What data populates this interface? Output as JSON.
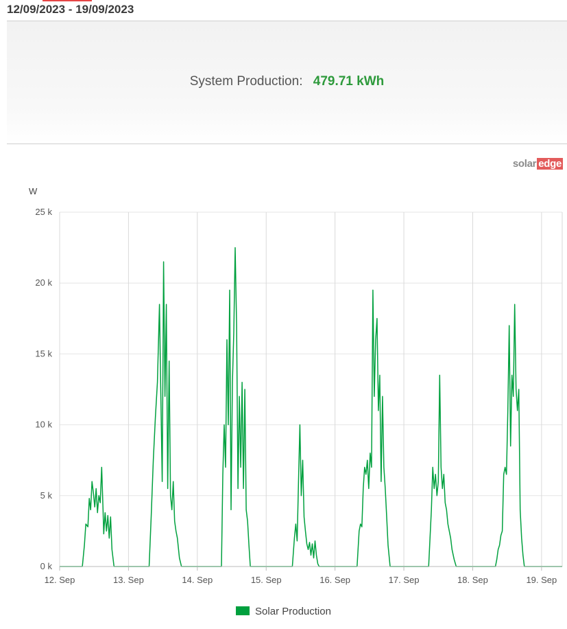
{
  "header": {
    "date_range": "12/09/2023 - 19/09/2023"
  },
  "summary": {
    "label": "System Production:",
    "value": "479.71 kWh"
  },
  "logo": {
    "part1": "solar",
    "part2": "edge"
  },
  "chart_data": {
    "type": "area",
    "unit_label": "W",
    "ylim": [
      0,
      25000
    ],
    "y_ticks": [
      0,
      5000,
      10000,
      15000,
      20000,
      25000
    ],
    "y_tick_labels": [
      "0 k",
      "5 k",
      "10 k",
      "15 k",
      "20 k",
      "25 k"
    ],
    "xlim": [
      0,
      7.3
    ],
    "x_ticks": [
      0,
      1,
      2,
      3,
      4,
      5,
      6,
      7
    ],
    "x_tick_labels": [
      "12. Sep",
      "13. Sep",
      "14. Sep",
      "15. Sep",
      "16. Sep",
      "17. Sep",
      "18. Sep",
      "19. Sep"
    ],
    "grid": true,
    "legend_position": "bottom-center",
    "series": [
      {
        "name": "Solar Production",
        "color": "#00a03e",
        "points": [
          [
            0,
            0
          ],
          [
            0.33,
            0
          ],
          [
            0.36,
            1500
          ],
          [
            0.38,
            3000
          ],
          [
            0.41,
            2800
          ],
          [
            0.43,
            4800
          ],
          [
            0.45,
            4000
          ],
          [
            0.47,
            6000
          ],
          [
            0.49,
            5200
          ],
          [
            0.51,
            4200
          ],
          [
            0.53,
            5500
          ],
          [
            0.55,
            3800
          ],
          [
            0.57,
            5000
          ],
          [
            0.59,
            4500
          ],
          [
            0.61,
            7000
          ],
          [
            0.63,
            4000
          ],
          [
            0.64,
            2300
          ],
          [
            0.66,
            3800
          ],
          [
            0.68,
            2500
          ],
          [
            0.7,
            3600
          ],
          [
            0.72,
            2000
          ],
          [
            0.74,
            3500
          ],
          [
            0.76,
            1200
          ],
          [
            0.79,
            0
          ],
          [
            1.3,
            0
          ],
          [
            1.33,
            3500
          ],
          [
            1.36,
            7500
          ],
          [
            1.39,
            10500
          ],
          [
            1.42,
            13000
          ],
          [
            1.45,
            18500
          ],
          [
            1.47,
            12000
          ],
          [
            1.49,
            6000
          ],
          [
            1.51,
            21500
          ],
          [
            1.53,
            12000
          ],
          [
            1.55,
            18500
          ],
          [
            1.57,
            5500
          ],
          [
            1.59,
            14500
          ],
          [
            1.61,
            5000
          ],
          [
            1.63,
            4000
          ],
          [
            1.65,
            6000
          ],
          [
            1.67,
            3200
          ],
          [
            1.69,
            2500
          ],
          [
            1.71,
            2000
          ],
          [
            1.74,
            600
          ],
          [
            1.77,
            0
          ],
          [
            2.35,
            0
          ],
          [
            2.37,
            6500
          ],
          [
            2.39,
            10000
          ],
          [
            2.41,
            7000
          ],
          [
            2.43,
            16000
          ],
          [
            2.45,
            10000
          ],
          [
            2.47,
            19500
          ],
          [
            2.49,
            4000
          ],
          [
            2.51,
            13000
          ],
          [
            2.53,
            16500
          ],
          [
            2.55,
            22500
          ],
          [
            2.57,
            17000
          ],
          [
            2.59,
            5500
          ],
          [
            2.61,
            12000
          ],
          [
            2.63,
            7000
          ],
          [
            2.65,
            13000
          ],
          [
            2.67,
            5500
          ],
          [
            2.69,
            12500
          ],
          [
            2.71,
            4000
          ],
          [
            2.73,
            3200
          ],
          [
            2.75,
            1500
          ],
          [
            2.77,
            0
          ],
          [
            3.38,
            0
          ],
          [
            3.41,
            2000
          ],
          [
            3.43,
            3000
          ],
          [
            3.45,
            1800
          ],
          [
            3.47,
            6000
          ],
          [
            3.49,
            10000
          ],
          [
            3.51,
            5000
          ],
          [
            3.53,
            7500
          ],
          [
            3.55,
            3500
          ],
          [
            3.57,
            2500
          ],
          [
            3.59,
            1600
          ],
          [
            3.61,
            1200
          ],
          [
            3.63,
            1700
          ],
          [
            3.65,
            800
          ],
          [
            3.67,
            1600
          ],
          [
            3.69,
            600
          ],
          [
            3.71,
            1800
          ],
          [
            3.73,
            800
          ],
          [
            3.75,
            200
          ],
          [
            3.77,
            0
          ],
          [
            4.32,
            0
          ],
          [
            4.35,
            2500
          ],
          [
            4.37,
            3000
          ],
          [
            4.39,
            2800
          ],
          [
            4.41,
            5500
          ],
          [
            4.43,
            7000
          ],
          [
            4.45,
            6500
          ],
          [
            4.47,
            7500
          ],
          [
            4.49,
            5500
          ],
          [
            4.51,
            8000
          ],
          [
            4.53,
            7000
          ],
          [
            4.55,
            19500
          ],
          [
            4.57,
            12000
          ],
          [
            4.59,
            16000
          ],
          [
            4.61,
            17500
          ],
          [
            4.63,
            11000
          ],
          [
            4.65,
            13500
          ],
          [
            4.67,
            6000
          ],
          [
            4.69,
            12000
          ],
          [
            4.71,
            7000
          ],
          [
            4.73,
            5500
          ],
          [
            4.75,
            3500
          ],
          [
            4.77,
            1500
          ],
          [
            4.8,
            0
          ],
          [
            5.36,
            0
          ],
          [
            5.38,
            2000
          ],
          [
            5.4,
            4000
          ],
          [
            5.42,
            7000
          ],
          [
            5.44,
            5500
          ],
          [
            5.46,
            6500
          ],
          [
            5.48,
            5000
          ],
          [
            5.5,
            6000
          ],
          [
            5.52,
            13500
          ],
          [
            5.54,
            7000
          ],
          [
            5.56,
            5500
          ],
          [
            5.58,
            6500
          ],
          [
            5.6,
            4500
          ],
          [
            5.62,
            4000
          ],
          [
            5.64,
            3000
          ],
          [
            5.66,
            2500
          ],
          [
            5.68,
            2000
          ],
          [
            5.7,
            1200
          ],
          [
            5.73,
            500
          ],
          [
            5.76,
            0
          ],
          [
            6.33,
            0
          ],
          [
            6.35,
            500
          ],
          [
            6.37,
            1200
          ],
          [
            6.39,
            1500
          ],
          [
            6.41,
            2200
          ],
          [
            6.43,
            2500
          ],
          [
            6.45,
            6500
          ],
          [
            6.47,
            7000
          ],
          [
            6.49,
            6500
          ],
          [
            6.51,
            11000
          ],
          [
            6.53,
            17000
          ],
          [
            6.55,
            8500
          ],
          [
            6.57,
            13500
          ],
          [
            6.59,
            12000
          ],
          [
            6.61,
            18500
          ],
          [
            6.63,
            12500
          ],
          [
            6.65,
            11000
          ],
          [
            6.67,
            12500
          ],
          [
            6.69,
            4000
          ],
          [
            6.71,
            2000
          ],
          [
            6.73,
            800
          ],
          [
            6.75,
            0
          ],
          [
            7.3,
            0
          ]
        ]
      }
    ]
  }
}
